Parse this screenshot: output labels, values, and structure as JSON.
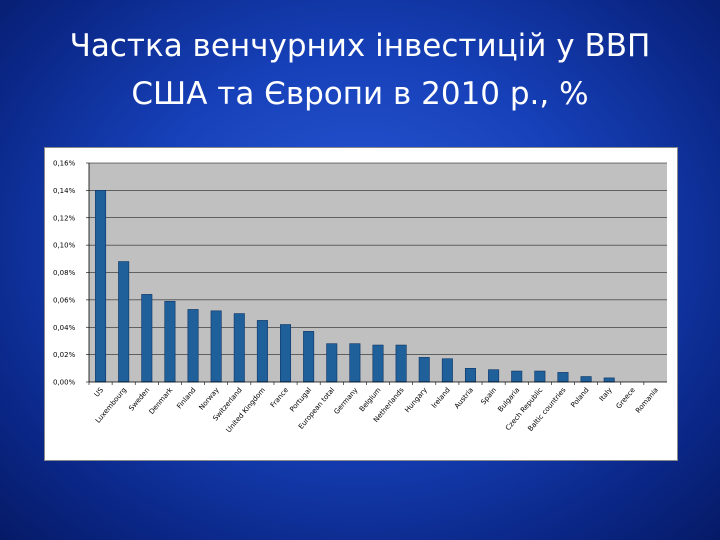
{
  "slide": {
    "title_line1": "Частка венчурних інвестицій у ВВП",
    "title_line2": "США та Європи в 2010 р., %"
  },
  "colors": {
    "bar_fill": "#1f5f9a",
    "bar_stroke": "#0d3566",
    "plot_bg": "#c0c0c0",
    "gridline": "#000000"
  },
  "chart_data": {
    "type": "bar",
    "title": "",
    "xlabel": "",
    "ylabel": "",
    "ylim": [
      0,
      0.16
    ],
    "y_ticks": [
      "0,00%",
      "0,02%",
      "0,04%",
      "0,06%",
      "0,08%",
      "0,10%",
      "0,12%",
      "0,14%",
      "0,16%"
    ],
    "y_unit": "%",
    "grid": true,
    "legend": "none",
    "categories": [
      "US",
      "Luxembourg",
      "Sweden",
      "Denmark",
      "Finland",
      "Norway",
      "Switzerland",
      "United Kingdom",
      "France",
      "Portugal",
      "European total",
      "Germany",
      "Belgium",
      "Netherlands",
      "Hungary",
      "Ireland",
      "Austria",
      "Spain",
      "Bulgaria",
      "Czech Republic",
      "Baltic countries",
      "Poland",
      "Italy",
      "Greece",
      "Romania"
    ],
    "values": [
      0.14,
      0.088,
      0.064,
      0.059,
      0.053,
      0.052,
      0.05,
      0.045,
      0.042,
      0.037,
      0.028,
      0.028,
      0.027,
      0.027,
      0.018,
      0.017,
      0.01,
      0.009,
      0.008,
      0.008,
      0.007,
      0.004,
      0.003,
      0.0,
      0.0
    ]
  }
}
